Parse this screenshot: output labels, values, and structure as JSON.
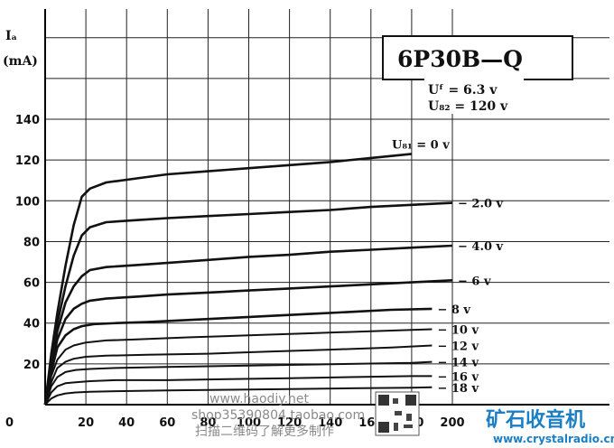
{
  "chart_data": {
    "type": "line",
    "title": "6P30B—Q",
    "params": [
      "Uᶠ = 6.3 v",
      "U₈₂ = 120 v"
    ],
    "ylabel_symbol": "Iₐ",
    "ylabel_unit": "(mA)",
    "x_ticks": [
      "0",
      "20",
      "40",
      "60",
      "80",
      "100",
      "120",
      "140",
      "160",
      "180",
      "200"
    ],
    "y_ticks": [
      "20",
      "40",
      "60",
      "80",
      "100",
      "120",
      "140"
    ],
    "xlim": [
      0,
      210
    ],
    "ylim": [
      0,
      160
    ],
    "grid": true,
    "series": [
      {
        "name": "U₈₁ = 0 v",
        "label": "U₈₁ = 0 v",
        "x": [
          0,
          3,
          6,
          10,
          14,
          18,
          22,
          30,
          45,
          60,
          80,
          100,
          120,
          140,
          160,
          180
        ],
        "y": [
          0,
          25,
          45,
          68,
          88,
          102,
          106,
          109,
          111,
          113,
          114.5,
          116,
          117.5,
          119,
          121,
          123
        ]
      },
      {
        "name": "-2.0 v",
        "label": "− 2.0 v",
        "x": [
          0,
          3,
          6,
          10,
          14,
          18,
          22,
          30,
          45,
          60,
          80,
          100,
          120,
          140,
          160,
          180,
          200
        ],
        "y": [
          0,
          22,
          40,
          58,
          73,
          83,
          87,
          89.5,
          90.5,
          91.5,
          92.5,
          93.5,
          94.5,
          95.5,
          97,
          98,
          99
        ]
      },
      {
        "name": "-4.0 v",
        "label": "− 4.0 v",
        "x": [
          0,
          3,
          6,
          10,
          14,
          18,
          22,
          30,
          45,
          60,
          80,
          100,
          120,
          140,
          160,
          180,
          200
        ],
        "y": [
          0,
          20,
          36,
          50,
          58,
          63,
          66,
          67.5,
          68.5,
          69.5,
          71,
          72.5,
          73.5,
          75,
          76,
          77,
          78
        ]
      },
      {
        "name": "-6 v",
        "label": "− 6  v",
        "x": [
          0,
          3,
          6,
          10,
          14,
          18,
          22,
          30,
          45,
          60,
          80,
          100,
          120,
          140,
          160,
          180,
          200
        ],
        "y": [
          0,
          18,
          32,
          42,
          47,
          49.5,
          51,
          52,
          53,
          54,
          55,
          56,
          57,
          58,
          59,
          60,
          61
        ]
      },
      {
        "name": "-8 v",
        "label": "− 8  v",
        "x": [
          0,
          3,
          6,
          10,
          14,
          18,
          24,
          35,
          50,
          70,
          90,
          110,
          130,
          150,
          170,
          190
        ],
        "y": [
          0,
          16,
          28,
          34,
          37,
          38.5,
          39.5,
          40,
          40.5,
          41.5,
          42.5,
          43.5,
          44.5,
          45.5,
          46.5,
          47
        ]
      },
      {
        "name": "-10 v",
        "label": "− 10  v",
        "x": [
          0,
          3,
          6,
          10,
          14,
          20,
          30,
          45,
          70,
          100,
          130,
          160,
          190
        ],
        "y": [
          0,
          14,
          22,
          27,
          29,
          30.5,
          31.5,
          32,
          33,
          34,
          35,
          36,
          37
        ]
      },
      {
        "name": "-12 v",
        "label": "− 12  v",
        "x": [
          0,
          3,
          6,
          10,
          14,
          20,
          30,
          50,
          80,
          110,
          140,
          170,
          190
        ],
        "y": [
          0,
          11,
          18,
          21,
          22.5,
          23.5,
          24,
          24.5,
          25,
          26,
          27,
          28,
          29
        ]
      },
      {
        "name": "-14 v",
        "label": "− 14  v",
        "x": [
          0,
          3,
          6,
          10,
          15,
          22,
          35,
          60,
          90,
          120,
          150,
          180,
          190
        ],
        "y": [
          0,
          9,
          13.5,
          16,
          17,
          17.5,
          18,
          18.5,
          19,
          19.5,
          20,
          20.5,
          21
        ]
      },
      {
        "name": "-16 v",
        "label": "− 16  v",
        "x": [
          0,
          3,
          6,
          10,
          15,
          22,
          35,
          60,
          90,
          120,
          150,
          180,
          190
        ],
        "y": [
          0,
          6,
          9,
          10.5,
          11,
          11.5,
          12,
          12,
          12.5,
          13,
          13.5,
          14,
          14
        ]
      },
      {
        "name": "-18 v",
        "label": "− 18  v",
        "x": [
          0,
          3,
          6,
          10,
          15,
          22,
          35,
          60,
          90,
          120,
          150,
          180,
          190
        ],
        "y": [
          0,
          3,
          4.5,
          5.5,
          6,
          6.3,
          6.6,
          7,
          7.3,
          7.6,
          8,
          8.3,
          8.5
        ]
      }
    ]
  },
  "watermark": {
    "line1": "www.haodiy.net",
    "line2": "shop35390804.taobao.com",
    "line3": "扫描二维码了解更多制作",
    "logo_text": "矿石收音机",
    "logo_url": "www.crystalradio.cn"
  }
}
